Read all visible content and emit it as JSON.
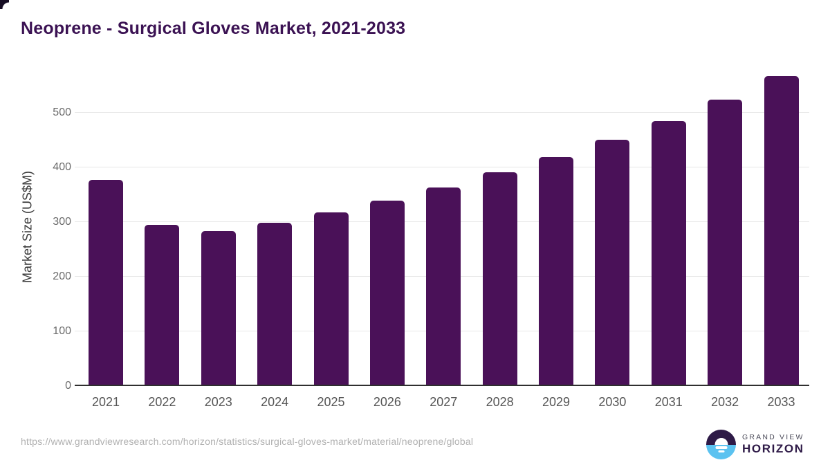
{
  "title": "Neoprene - Surgical Gloves Market, 2021-2033",
  "chart_data": {
    "type": "bar",
    "title": "Neoprene - Surgical Gloves Market, 2021-2033",
    "categories": [
      "2021",
      "2022",
      "2023",
      "2024",
      "2025",
      "2026",
      "2027",
      "2028",
      "2029",
      "2030",
      "2031",
      "2032",
      "2033"
    ],
    "values": [
      375,
      292,
      281,
      296,
      315,
      337,
      361,
      388,
      416,
      448,
      482,
      521,
      565
    ],
    "xlabel": "",
    "ylabel": "Market Size (US$M)",
    "ylim": [
      0,
      586
    ],
    "yticks": [
      0,
      100,
      200,
      300,
      400,
      500
    ],
    "grid": true,
    "legend": "none",
    "bar_color": "#4a1158"
  },
  "footer": {
    "source_url": "https://www.grandviewresearch.com/horizon/statistics/surgical-gloves-market/material/neoprene/global",
    "logo": {
      "line1": "GRAND VIEW",
      "line2": "HORIZON"
    }
  },
  "colors": {
    "title_text": "#3b1253",
    "bar": "#4a1158",
    "logo_purple": "#2e1a47",
    "logo_blue": "#5bc2f0",
    "gridline": "#e7e7e7",
    "axis_line": "#2f2f2f"
  }
}
